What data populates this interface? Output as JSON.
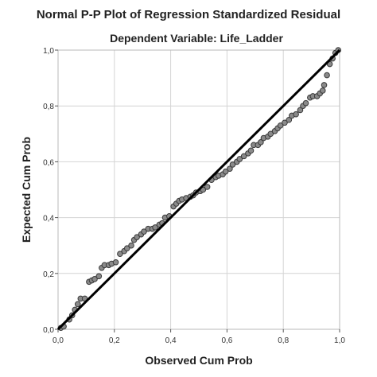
{
  "chart_data": {
    "type": "scatter",
    "title": "Normal P-P Plot of Regression Standardized Residual",
    "subtitle": "Dependent Variable: Life_Ladder",
    "xlabel": "Observed Cum Prob",
    "ylabel": "Expected Cum Prob",
    "xlim": [
      0,
      1
    ],
    "ylim": [
      0,
      1
    ],
    "xticks": [
      "0,0",
      "0,2",
      "0,4",
      "0,6",
      "0,8",
      "1,0"
    ],
    "yticks": [
      "0,0",
      "0,2",
      "0,4",
      "0,6",
      "0,8",
      "1,0"
    ],
    "grid": true,
    "reference_line": {
      "from": [
        0,
        0
      ],
      "to": [
        1,
        1
      ],
      "color": "#000000"
    },
    "marker_fill": "#8a8a8a",
    "marker_stroke": "#3a3a3a",
    "points": [
      [
        0.01,
        0.005
      ],
      [
        0.02,
        0.01
      ],
      [
        0.04,
        0.035
      ],
      [
        0.05,
        0.05
      ],
      [
        0.06,
        0.07
      ],
      [
        0.07,
        0.09
      ],
      [
        0.08,
        0.11
      ],
      [
        0.095,
        0.11
      ],
      [
        0.11,
        0.17
      ],
      [
        0.12,
        0.175
      ],
      [
        0.13,
        0.18
      ],
      [
        0.145,
        0.19
      ],
      [
        0.155,
        0.22
      ],
      [
        0.165,
        0.23
      ],
      [
        0.18,
        0.23
      ],
      [
        0.19,
        0.235
      ],
      [
        0.205,
        0.24
      ],
      [
        0.22,
        0.27
      ],
      [
        0.235,
        0.28
      ],
      [
        0.245,
        0.29
      ],
      [
        0.26,
        0.3
      ],
      [
        0.27,
        0.32
      ],
      [
        0.28,
        0.33
      ],
      [
        0.295,
        0.34
      ],
      [
        0.305,
        0.35
      ],
      [
        0.32,
        0.36
      ],
      [
        0.335,
        0.36
      ],
      [
        0.345,
        0.365
      ],
      [
        0.36,
        0.375
      ],
      [
        0.37,
        0.38
      ],
      [
        0.38,
        0.4
      ],
      [
        0.395,
        0.405
      ],
      [
        0.41,
        0.44
      ],
      [
        0.42,
        0.45
      ],
      [
        0.43,
        0.46
      ],
      [
        0.44,
        0.465
      ],
      [
        0.455,
        0.47
      ],
      [
        0.47,
        0.475
      ],
      [
        0.48,
        0.48
      ],
      [
        0.49,
        0.49
      ],
      [
        0.505,
        0.495
      ],
      [
        0.515,
        0.5
      ],
      [
        0.53,
        0.51
      ],
      [
        0.545,
        0.535
      ],
      [
        0.56,
        0.545
      ],
      [
        0.57,
        0.55
      ],
      [
        0.585,
        0.555
      ],
      [
        0.595,
        0.565
      ],
      [
        0.61,
        0.575
      ],
      [
        0.62,
        0.59
      ],
      [
        0.635,
        0.6
      ],
      [
        0.645,
        0.61
      ],
      [
        0.66,
        0.62
      ],
      [
        0.675,
        0.63
      ],
      [
        0.685,
        0.64
      ],
      [
        0.695,
        0.66
      ],
      [
        0.71,
        0.66
      ],
      [
        0.72,
        0.67
      ],
      [
        0.73,
        0.685
      ],
      [
        0.745,
        0.69
      ],
      [
        0.755,
        0.7
      ],
      [
        0.77,
        0.71
      ],
      [
        0.78,
        0.72
      ],
      [
        0.79,
        0.73
      ],
      [
        0.805,
        0.74
      ],
      [
        0.82,
        0.75
      ],
      [
        0.83,
        0.765
      ],
      [
        0.845,
        0.77
      ],
      [
        0.86,
        0.785
      ],
      [
        0.87,
        0.8
      ],
      [
        0.88,
        0.81
      ],
      [
        0.895,
        0.83
      ],
      [
        0.905,
        0.835
      ],
      [
        0.92,
        0.835
      ],
      [
        0.93,
        0.845
      ],
      [
        0.94,
        0.855
      ],
      [
        0.945,
        0.875
      ],
      [
        0.955,
        0.91
      ],
      [
        0.965,
        0.95
      ],
      [
        0.975,
        0.97
      ],
      [
        0.985,
        0.99
      ],
      [
        0.995,
        1.0
      ]
    ]
  }
}
